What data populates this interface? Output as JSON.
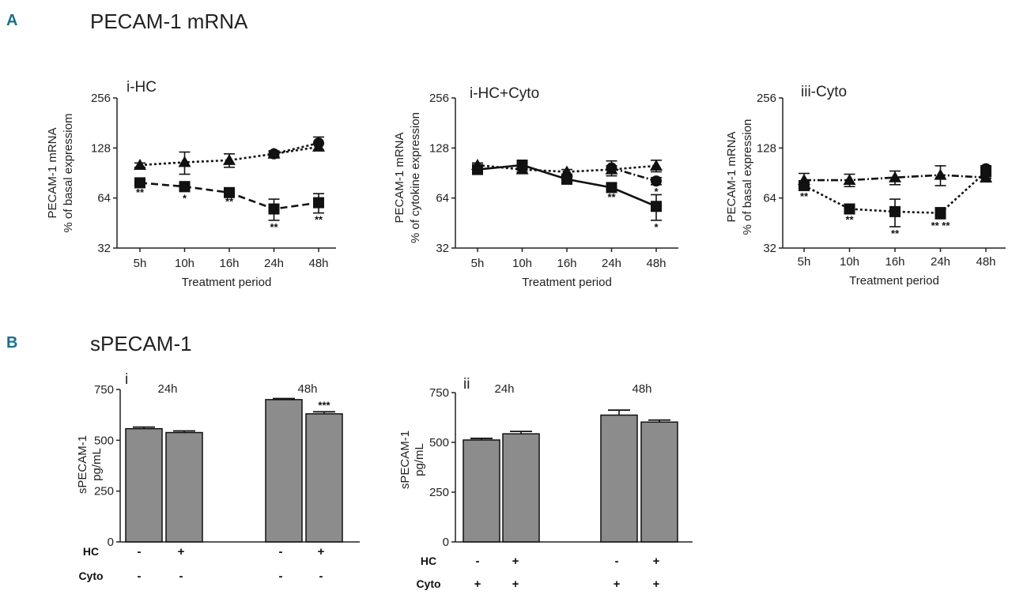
{
  "panel_a": {
    "letter": "A",
    "title": "PECAM-1 mRNA"
  },
  "panel_b": {
    "letter": "B",
    "title": "sPECAM-1"
  },
  "chart_data": [
    {
      "id": "a1",
      "type": "line",
      "title": "i-HC",
      "ylabel_lines": [
        "PECAM-1 mRNA",
        "% of basal expressiom"
      ],
      "xlabel": "Treatment period",
      "categories": [
        "5h",
        "10h",
        "16h",
        "24h",
        "48h"
      ],
      "yscale": "log2",
      "ylim": [
        32,
        256
      ],
      "yticks": [
        "32",
        "64",
        "128",
        "256"
      ],
      "series": [
        {
          "name": "triangle",
          "marker": "triangle",
          "dash": "dotted",
          "values": [
            101,
            105,
            108,
            118,
            130
          ],
          "errors": [
            3,
            16,
            10,
            5,
            6
          ],
          "sig": [
            "",
            "",
            "",
            "",
            ""
          ]
        },
        {
          "name": "circle",
          "marker": "circle",
          "dash": "dotted",
          "values": [
            null,
            null,
            null,
            118,
            137
          ],
          "errors": [
            0,
            0,
            0,
            4,
            12
          ],
          "sig": [
            "",
            "",
            "",
            "",
            ""
          ]
        },
        {
          "name": "square",
          "marker": "square",
          "dash": "dashed",
          "values": [
            79,
            75,
            69,
            55,
            60
          ],
          "errors": [
            3,
            5,
            2,
            8,
            8
          ],
          "sig": [
            "**",
            "*",
            "**",
            "**",
            "**"
          ]
        }
      ]
    },
    {
      "id": "a2",
      "type": "line",
      "title": "i-HC+Cyto",
      "ylabel_lines": [
        "PECAM-1 mRNA",
        "% of cytokine expression"
      ],
      "xlabel": "Treatment period",
      "categories": [
        "5h",
        "10h",
        "16h",
        "24h",
        "48h"
      ],
      "yscale": "log2",
      "ylim": [
        32,
        256
      ],
      "yticks": [
        "32",
        "64",
        "128",
        "256"
      ],
      "series": [
        {
          "name": "triangle",
          "marker": "triangle",
          "dash": "dotted",
          "values": [
            101,
            95,
            92,
            95,
            100
          ],
          "errors": [
            3,
            3,
            3,
            5,
            8
          ],
          "sig": [
            "",
            "",
            "",
            "",
            ""
          ]
        },
        {
          "name": "circle",
          "marker": "circle",
          "dash": "dashdot",
          "values": [
            null,
            null,
            null,
            97,
            81
          ],
          "errors": [
            0,
            0,
            0,
            10,
            4
          ],
          "sig": [
            "",
            "",
            "",
            "",
            "*"
          ]
        },
        {
          "name": "square",
          "marker": "square",
          "dash": "solid",
          "values": [
            95,
            101,
            83,
            74,
            57
          ],
          "errors": [
            3,
            3,
            5,
            3,
            10
          ],
          "sig": [
            "",
            "",
            "",
            "**",
            "*"
          ]
        }
      ]
    },
    {
      "id": "a3",
      "type": "line",
      "title": "iii-Cyto",
      "ylabel_lines": [
        "PECAM-1 mRNA",
        "% of basal expression"
      ],
      "xlabel": "Treatment period",
      "categories": [
        "5h",
        "10h",
        "16h",
        "24h",
        "48h"
      ],
      "yscale": "log2",
      "ylim": [
        32,
        256
      ],
      "yticks": [
        "32",
        "64",
        "128",
        "256"
      ],
      "series": [
        {
          "name": "triangle",
          "marker": "triangle",
          "dash": "dashdot",
          "values": [
            82,
            82,
            85,
            88,
            85
          ],
          "errors": [
            8,
            7,
            8,
            12,
            5
          ],
          "sig": [
            "",
            "",
            "",
            "",
            ""
          ]
        },
        {
          "name": "circle",
          "marker": "circle",
          "dash": "dashdot",
          "values": [
            null,
            null,
            null,
            null,
            96
          ],
          "errors": [
            0,
            0,
            0,
            0,
            4
          ],
          "sig": [
            "",
            "",
            "",
            "",
            ""
          ]
        },
        {
          "name": "square",
          "marker": "square",
          "dash": "dotted",
          "values": [
            76,
            55,
            53,
            52,
            92
          ],
          "errors": [
            4,
            3,
            10,
            4,
            8
          ],
          "sig": [
            "**",
            "**",
            "**",
            "** **",
            ""
          ]
        }
      ]
    },
    {
      "id": "b1",
      "type": "bar",
      "title": "i",
      "ylabel_lines": [
        "sPECAM-1",
        "pg/mL"
      ],
      "ylim": [
        0,
        750
      ],
      "yticks": [
        "0",
        "250",
        "500",
        "750"
      ],
      "group_labels": [
        "24h",
        "48h"
      ],
      "values": [
        557,
        538,
        700,
        630
      ],
      "errors": [
        8,
        8,
        5,
        10
      ],
      "sig": [
        "",
        "",
        "",
        "***"
      ],
      "conditions": [
        {
          "label": "HC",
          "values": [
            "-",
            "+",
            "-",
            "+"
          ]
        },
        {
          "label": "Cyto",
          "values": [
            "-",
            "-",
            "-",
            "-"
          ]
        }
      ]
    },
    {
      "id": "b2",
      "type": "bar",
      "title": "ii",
      "ylabel_lines": [
        "sPECAM-1",
        "pg/mL"
      ],
      "ylim": [
        0,
        750
      ],
      "yticks": [
        "0",
        "250",
        "500",
        "750"
      ],
      "group_labels": [
        "24h",
        "48h"
      ],
      "values": [
        512,
        543,
        637,
        602
      ],
      "errors": [
        8,
        12,
        25,
        10
      ],
      "sig": [
        "",
        "",
        "",
        ""
      ],
      "conditions": [
        {
          "label": "HC",
          "values": [
            "-",
            "+",
            "-",
            "+"
          ]
        },
        {
          "label": "Cyto",
          "values": [
            "+",
            "+",
            "+",
            "+"
          ]
        }
      ]
    }
  ]
}
